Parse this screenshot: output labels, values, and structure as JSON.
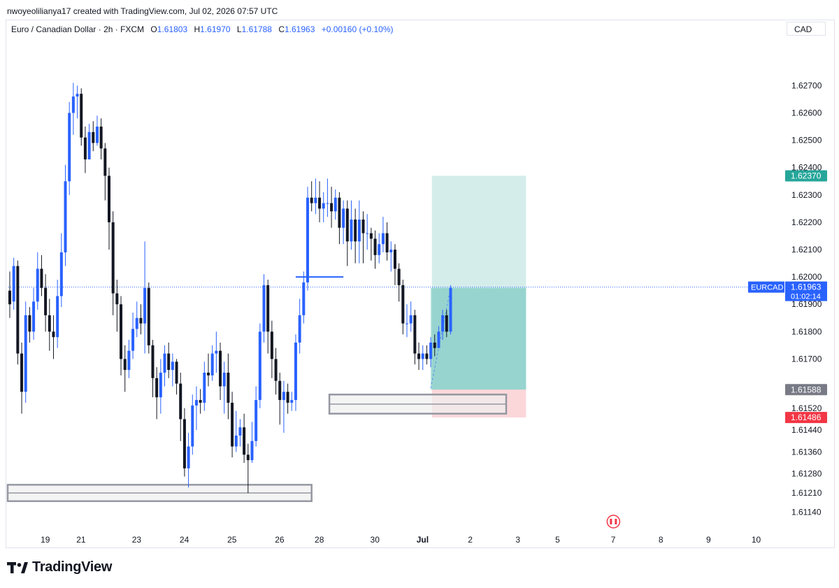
{
  "header": {
    "credit": "nwoyeolilianya17 created with TradingView.com, Jul 02, 2026 07:57 UTC"
  },
  "legend": {
    "symbol": "Euro / Canadian Dollar · 2h · FXCM",
    "open_label": "O",
    "open": "1.61803",
    "high_label": "H",
    "high": "1.61970",
    "low_label": "L",
    "low": "1.61788",
    "close_label": "C",
    "close": "1.61963",
    "change": "+0.00160 (+0.10%)"
  },
  "currency_box": "CAD",
  "brand": {
    "name": "TradingView"
  },
  "colors": {
    "up": "#2962ff",
    "down": "#131722",
    "target": "#26a69a",
    "stop": "#f23645",
    "entry": "#787b86"
  },
  "chart_data": {
    "type": "candlestick",
    "symbol": "EURCAD",
    "timeframe": "2h",
    "ylim": [
      1.6109,
      1.6288
    ],
    "y_ticks": [
      "1.62700",
      "1.62600",
      "1.62500",
      "1.62400",
      "1.62300",
      "1.62200",
      "1.62100",
      "1.62000",
      "1.61900",
      "1.61800",
      "1.61700",
      "1.61520",
      "1.61440",
      "1.61360",
      "1.61280",
      "1.61210",
      "1.61140"
    ],
    "y_tick_values": [
      1.627,
      1.626,
      1.625,
      1.624,
      1.623,
      1.622,
      1.621,
      1.62,
      1.619,
      1.618,
      1.617,
      1.6152,
      1.6144,
      1.6136,
      1.6128,
      1.6121,
      1.6114
    ],
    "x_labels": [
      "19",
      "21",
      "23",
      "24",
      "25",
      "26",
      "28",
      "30",
      "Jul",
      "2",
      "3",
      "5",
      "7",
      "8",
      "9",
      "10"
    ],
    "x_label_slots": [
      10,
      19,
      33,
      45,
      57,
      69,
      79,
      93,
      105,
      117,
      129,
      139,
      153,
      165,
      177,
      189
    ],
    "candles": [
      [
        1.6195,
        1.619,
        1.6202,
        1.6185
      ],
      [
        1.6191,
        1.6204,
        1.6207,
        1.6188
      ],
      [
        1.6204,
        1.6172,
        1.6206,
        1.6168
      ],
      [
        1.6172,
        1.6158,
        1.6176,
        1.615
      ],
      [
        1.6158,
        1.6186,
        1.6191,
        1.6154
      ],
      [
        1.6186,
        1.618,
        1.6189,
        1.6176
      ],
      [
        1.618,
        1.6191,
        1.6196,
        1.6177
      ],
      [
        1.6191,
        1.6203,
        1.6209,
        1.6188
      ],
      [
        1.6203,
        1.6196,
        1.6208,
        1.6193
      ],
      [
        1.6196,
        1.6186,
        1.6201,
        1.618
      ],
      [
        1.6186,
        1.618,
        1.6192,
        1.6173
      ],
      [
        1.618,
        1.6178,
        1.6186,
        1.617
      ],
      [
        1.6178,
        1.6193,
        1.6199,
        1.6174
      ],
      [
        1.6193,
        1.6209,
        1.6216,
        1.6189
      ],
      [
        1.6209,
        1.6235,
        1.6241,
        1.6204
      ],
      [
        1.6235,
        1.626,
        1.6264,
        1.623
      ],
      [
        1.626,
        1.6266,
        1.6271,
        1.6252
      ],
      [
        1.6266,
        1.6267,
        1.627,
        1.6258
      ],
      [
        1.6267,
        1.6251,
        1.6269,
        1.6248
      ],
      [
        1.6251,
        1.6243,
        1.6255,
        1.6238
      ],
      [
        1.6243,
        1.6253,
        1.6256,
        1.6244
      ],
      [
        1.6253,
        1.6249,
        1.6257,
        1.6246
      ],
      [
        1.6249,
        1.6255,
        1.6259,
        1.6248
      ],
      [
        1.6255,
        1.6247,
        1.6258,
        1.6243
      ],
      [
        1.6247,
        1.6237,
        1.6249,
        1.6228
      ],
      [
        1.6237,
        1.622,
        1.624,
        1.621
      ],
      [
        1.622,
        1.6194,
        1.6224,
        1.6186
      ],
      [
        1.6194,
        1.619,
        1.6199,
        1.618
      ],
      [
        1.619,
        1.617,
        1.6193,
        1.6164
      ],
      [
        1.617,
        1.6166,
        1.6175,
        1.6158
      ],
      [
        1.6166,
        1.6173,
        1.6177,
        1.6163
      ],
      [
        1.6173,
        1.6181,
        1.6187,
        1.617
      ],
      [
        1.6181,
        1.6185,
        1.6191,
        1.6178
      ],
      [
        1.6185,
        1.6183,
        1.619,
        1.6179
      ],
      [
        1.6183,
        1.6196,
        1.6213,
        1.6172
      ],
      [
        1.6196,
        1.6175,
        1.6198,
        1.6172
      ],
      [
        1.6175,
        1.6163,
        1.6177,
        1.6156
      ],
      [
        1.6163,
        1.6156,
        1.6167,
        1.6148
      ],
      [
        1.6156,
        1.6165,
        1.617,
        1.615
      ],
      [
        1.6165,
        1.6172,
        1.6175,
        1.616
      ],
      [
        1.6172,
        1.6166,
        1.6176,
        1.6163
      ],
      [
        1.6166,
        1.6169,
        1.6172,
        1.616
      ],
      [
        1.6169,
        1.6161,
        1.617,
        1.6157
      ],
      [
        1.6161,
        1.6148,
        1.6165,
        1.614
      ],
      [
        1.6148,
        1.613,
        1.6152,
        1.6127
      ],
      [
        1.613,
        1.6138,
        1.6143,
        1.6123
      ],
      [
        1.6138,
        1.6153,
        1.6157,
        1.6135
      ],
      [
        1.6153,
        1.6155,
        1.616,
        1.6144
      ],
      [
        1.6155,
        1.6154,
        1.6159,
        1.615
      ],
      [
        1.6154,
        1.6165,
        1.6169,
        1.6151
      ],
      [
        1.6165,
        1.6164,
        1.6172,
        1.616
      ],
      [
        1.6164,
        1.6172,
        1.6175,
        1.6162
      ],
      [
        1.6172,
        1.6173,
        1.618,
        1.6165
      ],
      [
        1.6173,
        1.616,
        1.6176,
        1.6155
      ],
      [
        1.616,
        1.6165,
        1.6169,
        1.615
      ],
      [
        1.6165,
        1.6154,
        1.6172,
        1.6148
      ],
      [
        1.6154,
        1.6138,
        1.6158,
        1.6134
      ],
      [
        1.6138,
        1.6142,
        1.6151,
        1.6136
      ],
      [
        1.6142,
        1.6145,
        1.6148,
        1.6138
      ],
      [
        1.6145,
        1.6135,
        1.615,
        1.6132
      ],
      [
        1.6135,
        1.6133,
        1.6139,
        1.6121
      ],
      [
        1.6133,
        1.614,
        1.6147,
        1.6132
      ],
      [
        1.614,
        1.6155,
        1.616,
        1.6138
      ],
      [
        1.6155,
        1.618,
        1.6183,
        1.6152
      ],
      [
        1.618,
        1.6197,
        1.6201,
        1.6176
      ],
      [
        1.6197,
        1.618,
        1.6199,
        1.6172
      ],
      [
        1.618,
        1.617,
        1.6184,
        1.6163
      ],
      [
        1.617,
        1.6162,
        1.6174,
        1.6157
      ],
      [
        1.6162,
        1.6155,
        1.6165,
        1.6146
      ],
      [
        1.6155,
        1.6158,
        1.6162,
        1.6143
      ],
      [
        1.6158,
        1.6154,
        1.6161,
        1.615
      ],
      [
        1.6154,
        1.6155,
        1.6158,
        1.6151
      ],
      [
        1.6155,
        1.6176,
        1.6179,
        1.6151
      ],
      [
        1.6176,
        1.6186,
        1.6192,
        1.6172
      ],
      [
        1.6186,
        1.6198,
        1.6202,
        1.6183
      ],
      [
        1.6198,
        1.6229,
        1.6233,
        1.6195
      ],
      [
        1.6229,
        1.6227,
        1.6235,
        1.6224
      ],
      [
        1.6227,
        1.6229,
        1.6236,
        1.6223
      ],
      [
        1.6229,
        1.6225,
        1.6235,
        1.622
      ],
      [
        1.6225,
        1.6227,
        1.6231,
        1.622
      ],
      [
        1.6227,
        1.6227,
        1.6236,
        1.6222
      ],
      [
        1.6227,
        1.6224,
        1.6233,
        1.6218
      ],
      [
        1.6224,
        1.6229,
        1.6232,
        1.6221
      ],
      [
        1.6229,
        1.6218,
        1.6231,
        1.6212
      ],
      [
        1.6218,
        1.6225,
        1.6228,
        1.6212
      ],
      [
        1.6225,
        1.6213,
        1.6228,
        1.6204
      ],
      [
        1.6213,
        1.6221,
        1.6228,
        1.621
      ],
      [
        1.6221,
        1.6213,
        1.6225,
        1.6205
      ],
      [
        1.6213,
        1.6221,
        1.6228,
        1.6205
      ],
      [
        1.6221,
        1.6216,
        1.6224,
        1.6205
      ],
      [
        1.6216,
        1.6216,
        1.6223,
        1.621
      ],
      [
        1.6216,
        1.6214,
        1.6218,
        1.6206
      ],
      [
        1.6214,
        1.6208,
        1.6217,
        1.6203
      ],
      [
        1.6208,
        1.6212,
        1.6216,
        1.6205
      ],
      [
        1.6212,
        1.6216,
        1.6222,
        1.6209
      ],
      [
        1.6216,
        1.6209,
        1.622,
        1.6206
      ],
      [
        1.6209,
        1.621,
        1.6213,
        1.6202
      ],
      [
        1.621,
        1.6203,
        1.6212,
        1.6197
      ],
      [
        1.6203,
        1.6197,
        1.6205,
        1.6191
      ],
      [
        1.6197,
        1.6183,
        1.6199,
        1.6179
      ],
      [
        1.6183,
        1.6183,
        1.619,
        1.6178
      ],
      [
        1.6183,
        1.6186,
        1.6191,
        1.618
      ],
      [
        1.6186,
        1.6172,
        1.6188,
        1.6168
      ],
      [
        1.6172,
        1.617,
        1.6176,
        1.6166
      ],
      [
        1.617,
        1.6172,
        1.6175,
        1.6166
      ],
      [
        1.6172,
        1.617,
        1.6175,
        1.6168
      ],
      [
        1.617,
        1.6176,
        1.6178,
        1.6167
      ],
      [
        1.6176,
        1.6174,
        1.6179,
        1.6171
      ],
      [
        1.6174,
        1.618,
        1.6182,
        1.6175
      ],
      [
        1.618,
        1.6186,
        1.6188,
        1.6177
      ],
      [
        1.6186,
        1.618,
        1.6188,
        1.6178
      ],
      [
        1.618,
        1.6196,
        1.6197,
        1.6179
      ]
    ],
    "swing_line": {
      "price": 1.62,
      "from_slot": 72,
      "to_slot": 84
    },
    "zones": [
      {
        "name": "demand-zone-upper",
        "top": 1.6157,
        "bottom": 1.615,
        "from_slot": 81,
        "to_slot": 125,
        "color": "#787b86"
      },
      {
        "name": "demand-zone-lower",
        "top": 1.6124,
        "bottom": 1.6118,
        "from_slot": 0,
        "to_slot": 76,
        "color": "#787b86"
      }
    ],
    "position": {
      "type": "long",
      "entry": 1.61588,
      "entry_label": "1.61588",
      "target": 1.6237,
      "target_label": "1.62370",
      "stop": 1.61486,
      "stop_label": "1.61486",
      "from_slot": 107,
      "to_slot": 130
    },
    "price_line": {
      "price": 1.61963,
      "symbol_label": "EURCAD",
      "value_label": "1.61963",
      "countdown": "01:02:14"
    },
    "event_icon": {
      "slot": 152,
      "flag": "canada-flag-icon"
    }
  }
}
